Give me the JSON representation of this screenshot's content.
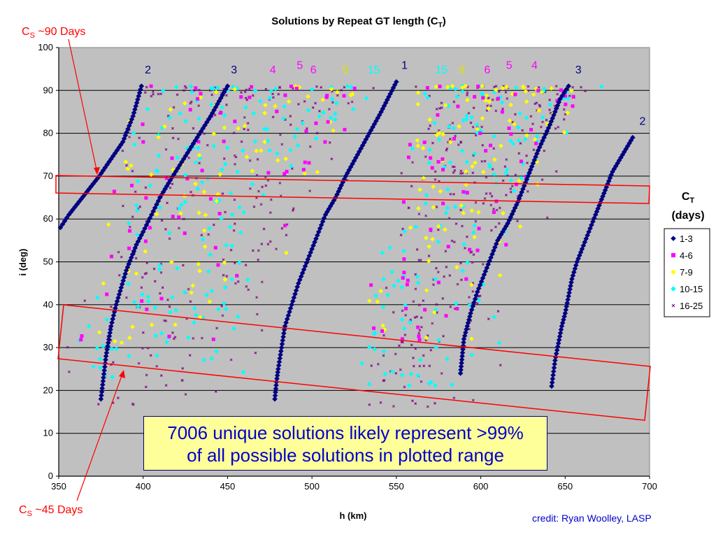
{
  "chart_data": {
    "type": "scatter",
    "title": "Solutions by Repeat GT length (C",
    "title_sub": "T",
    "title_end": ")",
    "xlabel": "h (km)",
    "ylabel": "i (deg)",
    "xlim": [
      350,
      700
    ],
    "ylim": [
      0,
      100
    ],
    "x_ticks": [
      350,
      400,
      450,
      500,
      550,
      600,
      650,
      700
    ],
    "y_ticks": [
      0,
      10,
      20,
      30,
      40,
      50,
      60,
      70,
      80,
      90,
      100
    ],
    "grid": true,
    "plot_background": "#c0c0c0",
    "legend": {
      "title": "C",
      "title_sub": "T",
      "title_line2": "(days)",
      "position": "right",
      "entries": [
        {
          "label": "1-3",
          "color": "#000080",
          "marker": "diamond"
        },
        {
          "label": "4-6",
          "color": "#ff00ff",
          "marker": "square"
        },
        {
          "label": "7-9",
          "color": "#ffff00",
          "marker": "diamond"
        },
        {
          "label": "10-15",
          "color": "#00ffff",
          "marker": "diamond"
        },
        {
          "label": "16-25",
          "color": "#800080",
          "marker": "x"
        }
      ]
    },
    "series": [
      {
        "name": "1-3",
        "color": "#000080",
        "marker": "diamond",
        "curves": [
          {
            "label": "2",
            "points": [
              [
                351,
                58
              ],
              [
                356,
                61
              ],
              [
                362,
                64
              ],
              [
                368,
                67
              ],
              [
                374,
                70
              ],
              [
                381,
                74
              ],
              [
                388,
                78
              ],
              [
                394,
                84
              ],
              [
                399,
                91
              ]
            ]
          },
          {
            "label": "3",
            "points": [
              [
                375,
                18
              ],
              [
                378,
                28
              ],
              [
                381,
                35
              ],
              [
                384,
                40
              ],
              [
                387,
                44
              ],
              [
                390,
                48
              ],
              [
                393,
                51
              ],
              [
                396,
                54
              ],
              [
                400,
                57
              ],
              [
                405,
                61
              ],
              [
                410,
                65
              ],
              [
                416,
                69
              ],
              [
                424,
                74
              ],
              [
                432,
                79
              ],
              [
                440,
                84
              ],
              [
                450,
                91
              ]
            ]
          },
          {
            "label": "1",
            "points": [
              [
                478,
                18
              ],
              [
                479,
                22
              ],
              [
                480,
                25
              ],
              [
                482,
                30
              ],
              [
                484,
                35
              ],
              [
                488,
                40
              ],
              [
                492,
                45
              ],
              [
                496,
                49
              ],
              [
                500,
                53
              ],
              [
                504,
                57
              ],
              [
                508,
                61
              ],
              [
                514,
                65
              ],
              [
                520,
                70
              ],
              [
                527,
                75
              ],
              [
                534,
                80
              ],
              [
                541,
                85
              ],
              [
                550,
                92
              ]
            ]
          },
          {
            "label": "3",
            "points": [
              [
                588,
                24
              ],
              [
                590,
                32
              ],
              [
                594,
                38
              ],
              [
                598,
                43
              ],
              [
                602,
                47
              ],
              [
                606,
                51
              ],
              [
                610,
                55
              ],
              [
                616,
                59
              ],
              [
                622,
                64
              ],
              [
                628,
                70
              ],
              [
                634,
                76
              ],
              [
                641,
                82
              ],
              [
                647,
                88
              ],
              [
                652,
                91
              ]
            ]
          },
          {
            "label": "2",
            "points": [
              [
                642,
                21
              ],
              [
                644,
                27
              ],
              [
                646,
                31
              ],
              [
                648,
                35
              ],
              [
                650,
                38
              ],
              [
                652,
                42
              ],
              [
                654,
                46
              ],
              [
                657,
                50
              ],
              [
                660,
                53
              ],
              [
                664,
                57
              ],
              [
                668,
                61
              ],
              [
                673,
                66
              ],
              [
                678,
                71
              ],
              [
                684,
                75
              ],
              [
                690,
                79
              ]
            ]
          }
        ],
        "curve_labels": [
          {
            "text": "2",
            "x": 401,
            "y": 94
          },
          {
            "text": "3",
            "x": 452,
            "y": 94
          },
          {
            "text": "1",
            "x": 553,
            "y": 95
          },
          {
            "text": "3",
            "x": 656,
            "y": 94
          },
          {
            "text": "2",
            "x": 694,
            "y": 82
          }
        ]
      },
      {
        "name": "4-6",
        "color": "#ff00ff",
        "marker": "square",
        "curve_labels": [
          {
            "text": "4",
            "x": 475,
            "y": 94
          },
          {
            "text": "5",
            "x": 491,
            "y": 95
          },
          {
            "text": "6",
            "x": 499,
            "y": 94
          },
          {
            "text": "6",
            "x": 602,
            "y": 94
          },
          {
            "text": "5",
            "x": 615,
            "y": 95
          },
          {
            "text": "4",
            "x": 630,
            "y": 95
          }
        ]
      },
      {
        "name": "7-9",
        "color": "#ffff00",
        "marker": "diamond",
        "curve_labels": [
          {
            "text": "9",
            "x": 518,
            "y": 94
          },
          {
            "text": "9",
            "x": 587,
            "y": 94
          }
        ]
      },
      {
        "name": "10-15",
        "color": "#00ffff",
        "marker": "diamond",
        "curve_labels": [
          {
            "text": "15",
            "x": 533,
            "y": 94
          },
          {
            "text": "15",
            "x": 573,
            "y": 94
          }
        ]
      },
      {
        "name": "16-25",
        "color": "#800080",
        "marker": "x"
      }
    ],
    "annotations": {
      "cs90": {
        "text": "C",
        "sub": "S",
        "rest": " ~90 Days"
      },
      "cs45": {
        "text": "C",
        "sub": "S",
        "rest": " ~45 Days"
      },
      "callout_line1": "7006 unique solutions likely represent >99%",
      "callout_line2": "of all possible solutions in plotted range",
      "credit": "credit: Ryan Woolley, LASP"
    }
  }
}
